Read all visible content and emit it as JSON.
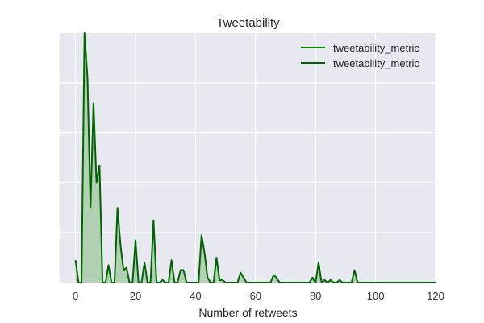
{
  "chart_data": {
    "type": "area",
    "title": "Tweetability",
    "xlabel": "Number of retweets",
    "ylabel": "",
    "xlim": [
      -5,
      120
    ],
    "ylim": [
      0,
      1.0
    ],
    "x_ticks": [
      0,
      20,
      40,
      60,
      80,
      100,
      120
    ],
    "y_gridlines": [
      0.2,
      0.4,
      0.6,
      0.8
    ],
    "y_tick_labels_shown": false,
    "grid": true,
    "legend_position": "top-right",
    "colors": {
      "line": "#006400",
      "legend_line_1": "#008000",
      "legend_line_2": "#006400",
      "fill": "#b2d1b2",
      "plot_background": "#e8e8f0",
      "grid": "#ffffff"
    },
    "legend": [
      "tweetability_metric",
      "tweetability_metric"
    ],
    "series": [
      {
        "name": "tweetability_metric",
        "x": [
          0,
          1,
          2,
          3,
          4,
          5,
          6,
          7,
          8,
          9,
          10,
          11,
          12,
          13,
          14,
          15,
          16,
          17,
          18,
          19,
          20,
          21,
          22,
          23,
          24,
          25,
          26,
          27,
          28,
          29,
          30,
          31,
          32,
          33,
          34,
          35,
          36,
          37,
          38,
          39,
          40,
          41,
          42,
          43,
          44,
          45,
          46,
          47,
          48,
          49,
          50,
          51,
          52,
          53,
          54,
          55,
          56,
          57,
          58,
          59,
          60,
          61,
          62,
          63,
          64,
          65,
          66,
          67,
          68,
          69,
          70,
          71,
          72,
          73,
          74,
          75,
          76,
          77,
          78,
          79,
          80,
          81,
          82,
          83,
          84,
          85,
          86,
          87,
          88,
          89,
          90,
          91,
          92,
          93,
          94,
          95,
          96,
          97,
          98,
          99,
          100,
          101,
          102,
          103,
          104,
          105,
          106,
          107,
          108,
          109,
          110,
          111,
          112,
          113,
          114,
          115,
          116,
          117,
          118,
          119,
          120
        ],
        "y": [
          0.09,
          0.0,
          0.0,
          1.08,
          0.82,
          0.3,
          0.72,
          0.4,
          0.47,
          0.0,
          0.0,
          0.07,
          0.0,
          0.0,
          0.3,
          0.15,
          0.05,
          0.06,
          0.0,
          0.0,
          0.17,
          0.0,
          0.0,
          0.08,
          0.0,
          0.0,
          0.25,
          0.0,
          0.0,
          0.01,
          0.0,
          0.0,
          0.09,
          0.0,
          0.0,
          0.05,
          0.05,
          0.0,
          0.0,
          0.0,
          0.0,
          0.0,
          0.19,
          0.12,
          0.02,
          0.0,
          0.0,
          0.1,
          0.01,
          0.01,
          0.0,
          0.0,
          0.0,
          0.0,
          0.0,
          0.04,
          0.02,
          0.0,
          0.0,
          0.0,
          0.0,
          0.0,
          0.0,
          0.0,
          0.0,
          0.0,
          0.03,
          0.02,
          0.0,
          0.0,
          0.0,
          0.0,
          0.0,
          0.0,
          0.0,
          0.0,
          0.0,
          0.0,
          0.0,
          0.02,
          0.0,
          0.08,
          0.0,
          0.01,
          0.0,
          0.01,
          0.0,
          0.0,
          0.01,
          0.0,
          0.0,
          0.0,
          0.0,
          0.05,
          0.0,
          0.0,
          0.0,
          0.0,
          0.0,
          0.0,
          0.0,
          0.0,
          0.0,
          0.0,
          0.0,
          0.0,
          0.0,
          0.0,
          0.0,
          0.0,
          0.0,
          0.0,
          0.0,
          0.0,
          0.0,
          0.0,
          0.0,
          0.0,
          0.0,
          0.0,
          0.0
        ]
      }
    ]
  }
}
